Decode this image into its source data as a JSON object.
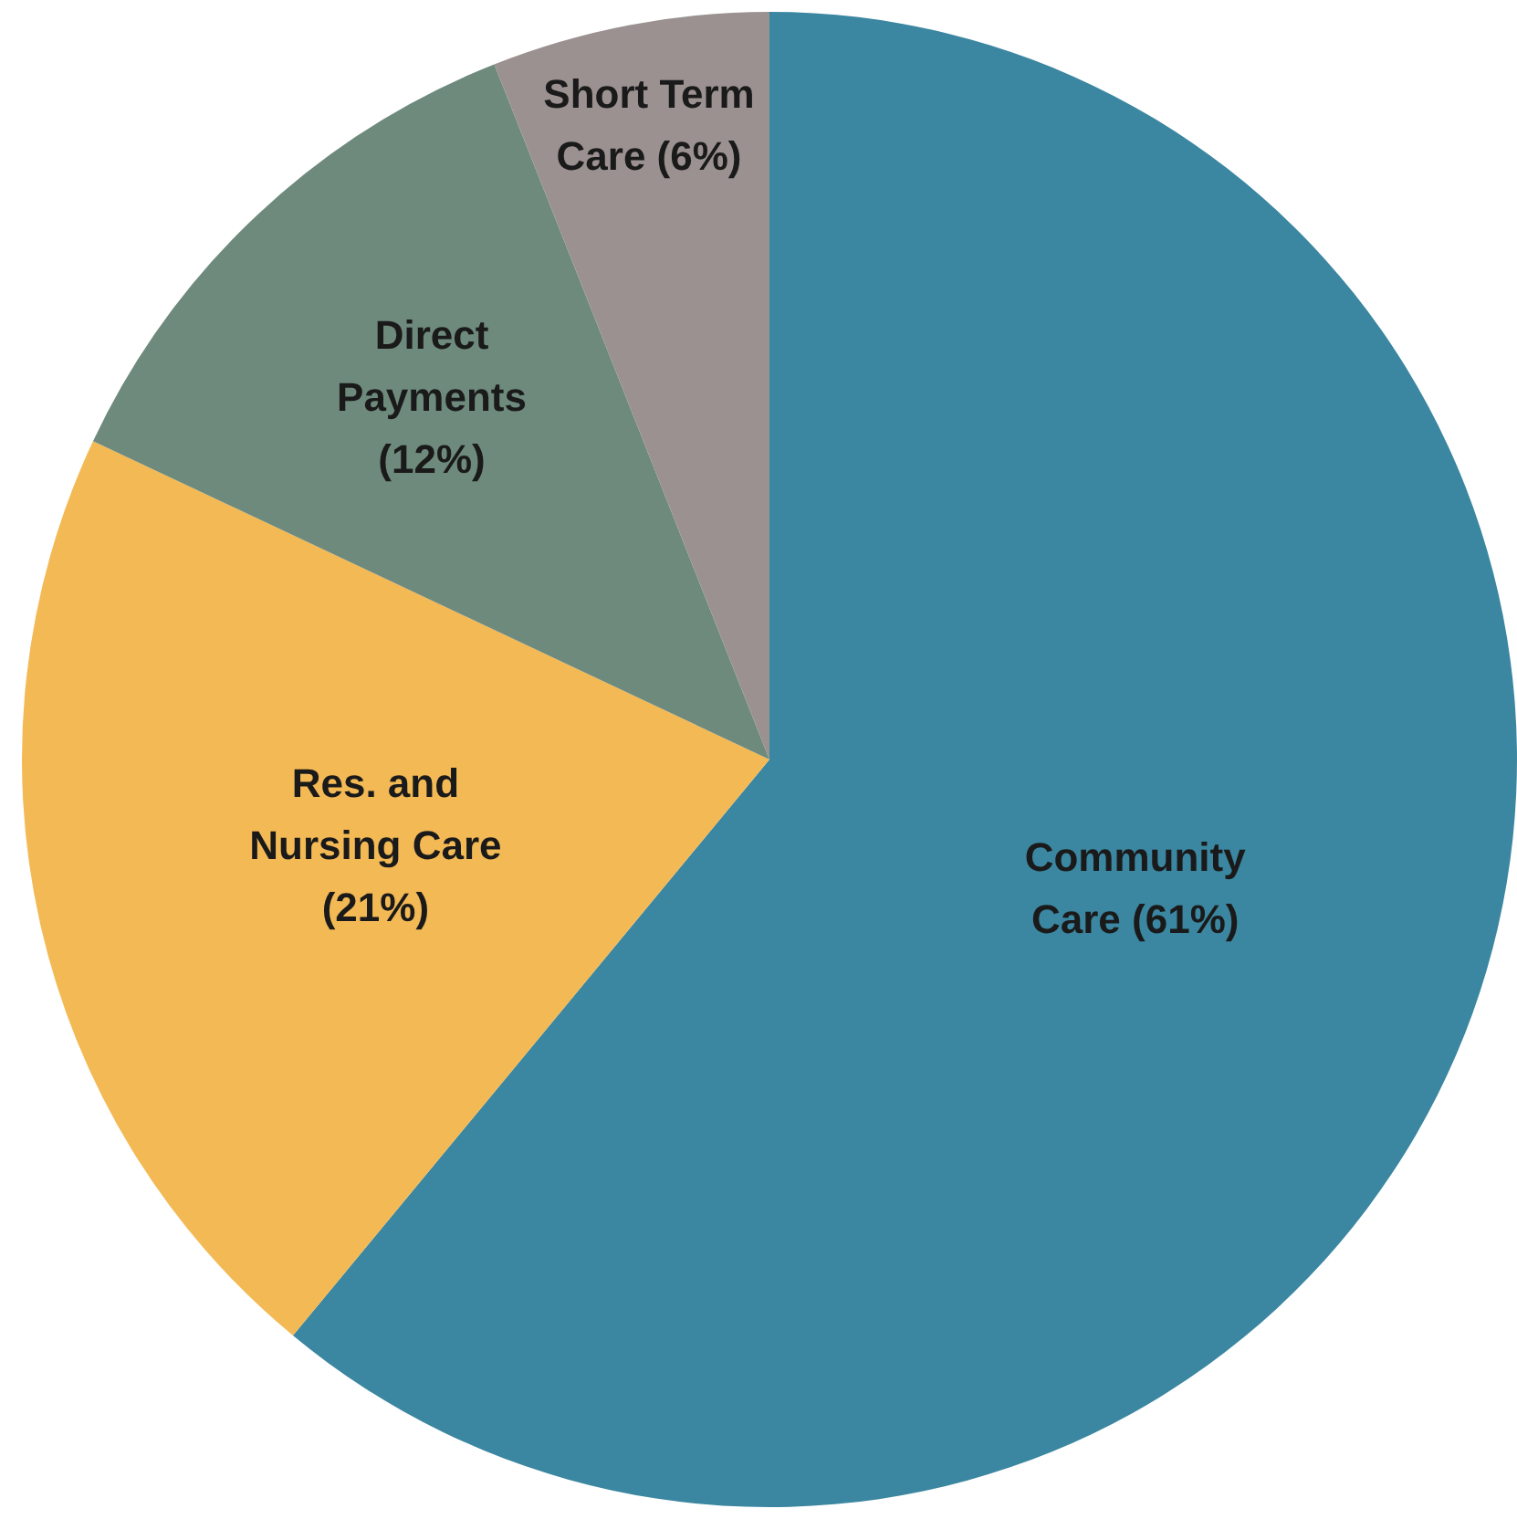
{
  "chart_data": {
    "type": "pie",
    "categories": [
      "Community Care",
      "Res. and Nursing Care",
      "Direct Payments",
      "Short Term Care"
    ],
    "values": [
      61,
      21,
      12,
      6
    ],
    "value_labels": [
      "(61%)",
      "(21%)",
      "(12%)",
      "(6%)"
    ],
    "colors": [
      "#3b86a0",
      "#f3b955",
      "#6e8a7c",
      "#9a9190"
    ],
    "legend": false
  }
}
